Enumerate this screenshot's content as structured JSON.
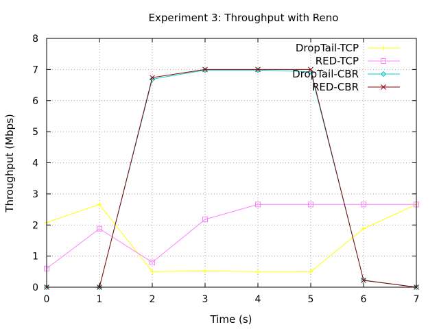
{
  "chart_data": {
    "type": "line",
    "title": "Experiment 3: Throughput with Reno",
    "xlabel": "Time (s)",
    "ylabel": "Throughput (Mbps)",
    "xlim": [
      0,
      7
    ],
    "ylim": [
      0,
      8
    ],
    "x_ticks": [
      0,
      1,
      2,
      3,
      4,
      5,
      6,
      7
    ],
    "y_ticks": [
      0,
      1,
      2,
      3,
      4,
      5,
      6,
      7,
      8
    ],
    "grid": true,
    "legend_position": "top-right",
    "x": [
      0,
      1,
      2,
      3,
      4,
      5,
      6,
      7
    ],
    "series": [
      {
        "name": "DropTail-TCP",
        "color": "#ffff00",
        "marker": "plus",
        "values": [
          2.08,
          2.66,
          0.5,
          0.52,
          0.5,
          0.5,
          1.88,
          2.66
        ]
      },
      {
        "name": "RED-TCP",
        "color": "#ff80ff",
        "marker": "open-square",
        "values": [
          0.6,
          1.88,
          0.8,
          2.18,
          2.66,
          2.66,
          2.66,
          2.66
        ]
      },
      {
        "name": "DropTail-CBR",
        "color": "#00cccc",
        "marker": "open-diamond",
        "values": [
          0,
          0,
          6.69,
          6.98,
          6.98,
          6.93,
          0.23,
          0
        ]
      },
      {
        "name": "RED-CBR",
        "color": "#8b0000",
        "marker": "x-cross",
        "values": [
          0,
          0,
          6.74,
          7.0,
          7.0,
          7.0,
          0.22,
          0
        ]
      }
    ]
  }
}
